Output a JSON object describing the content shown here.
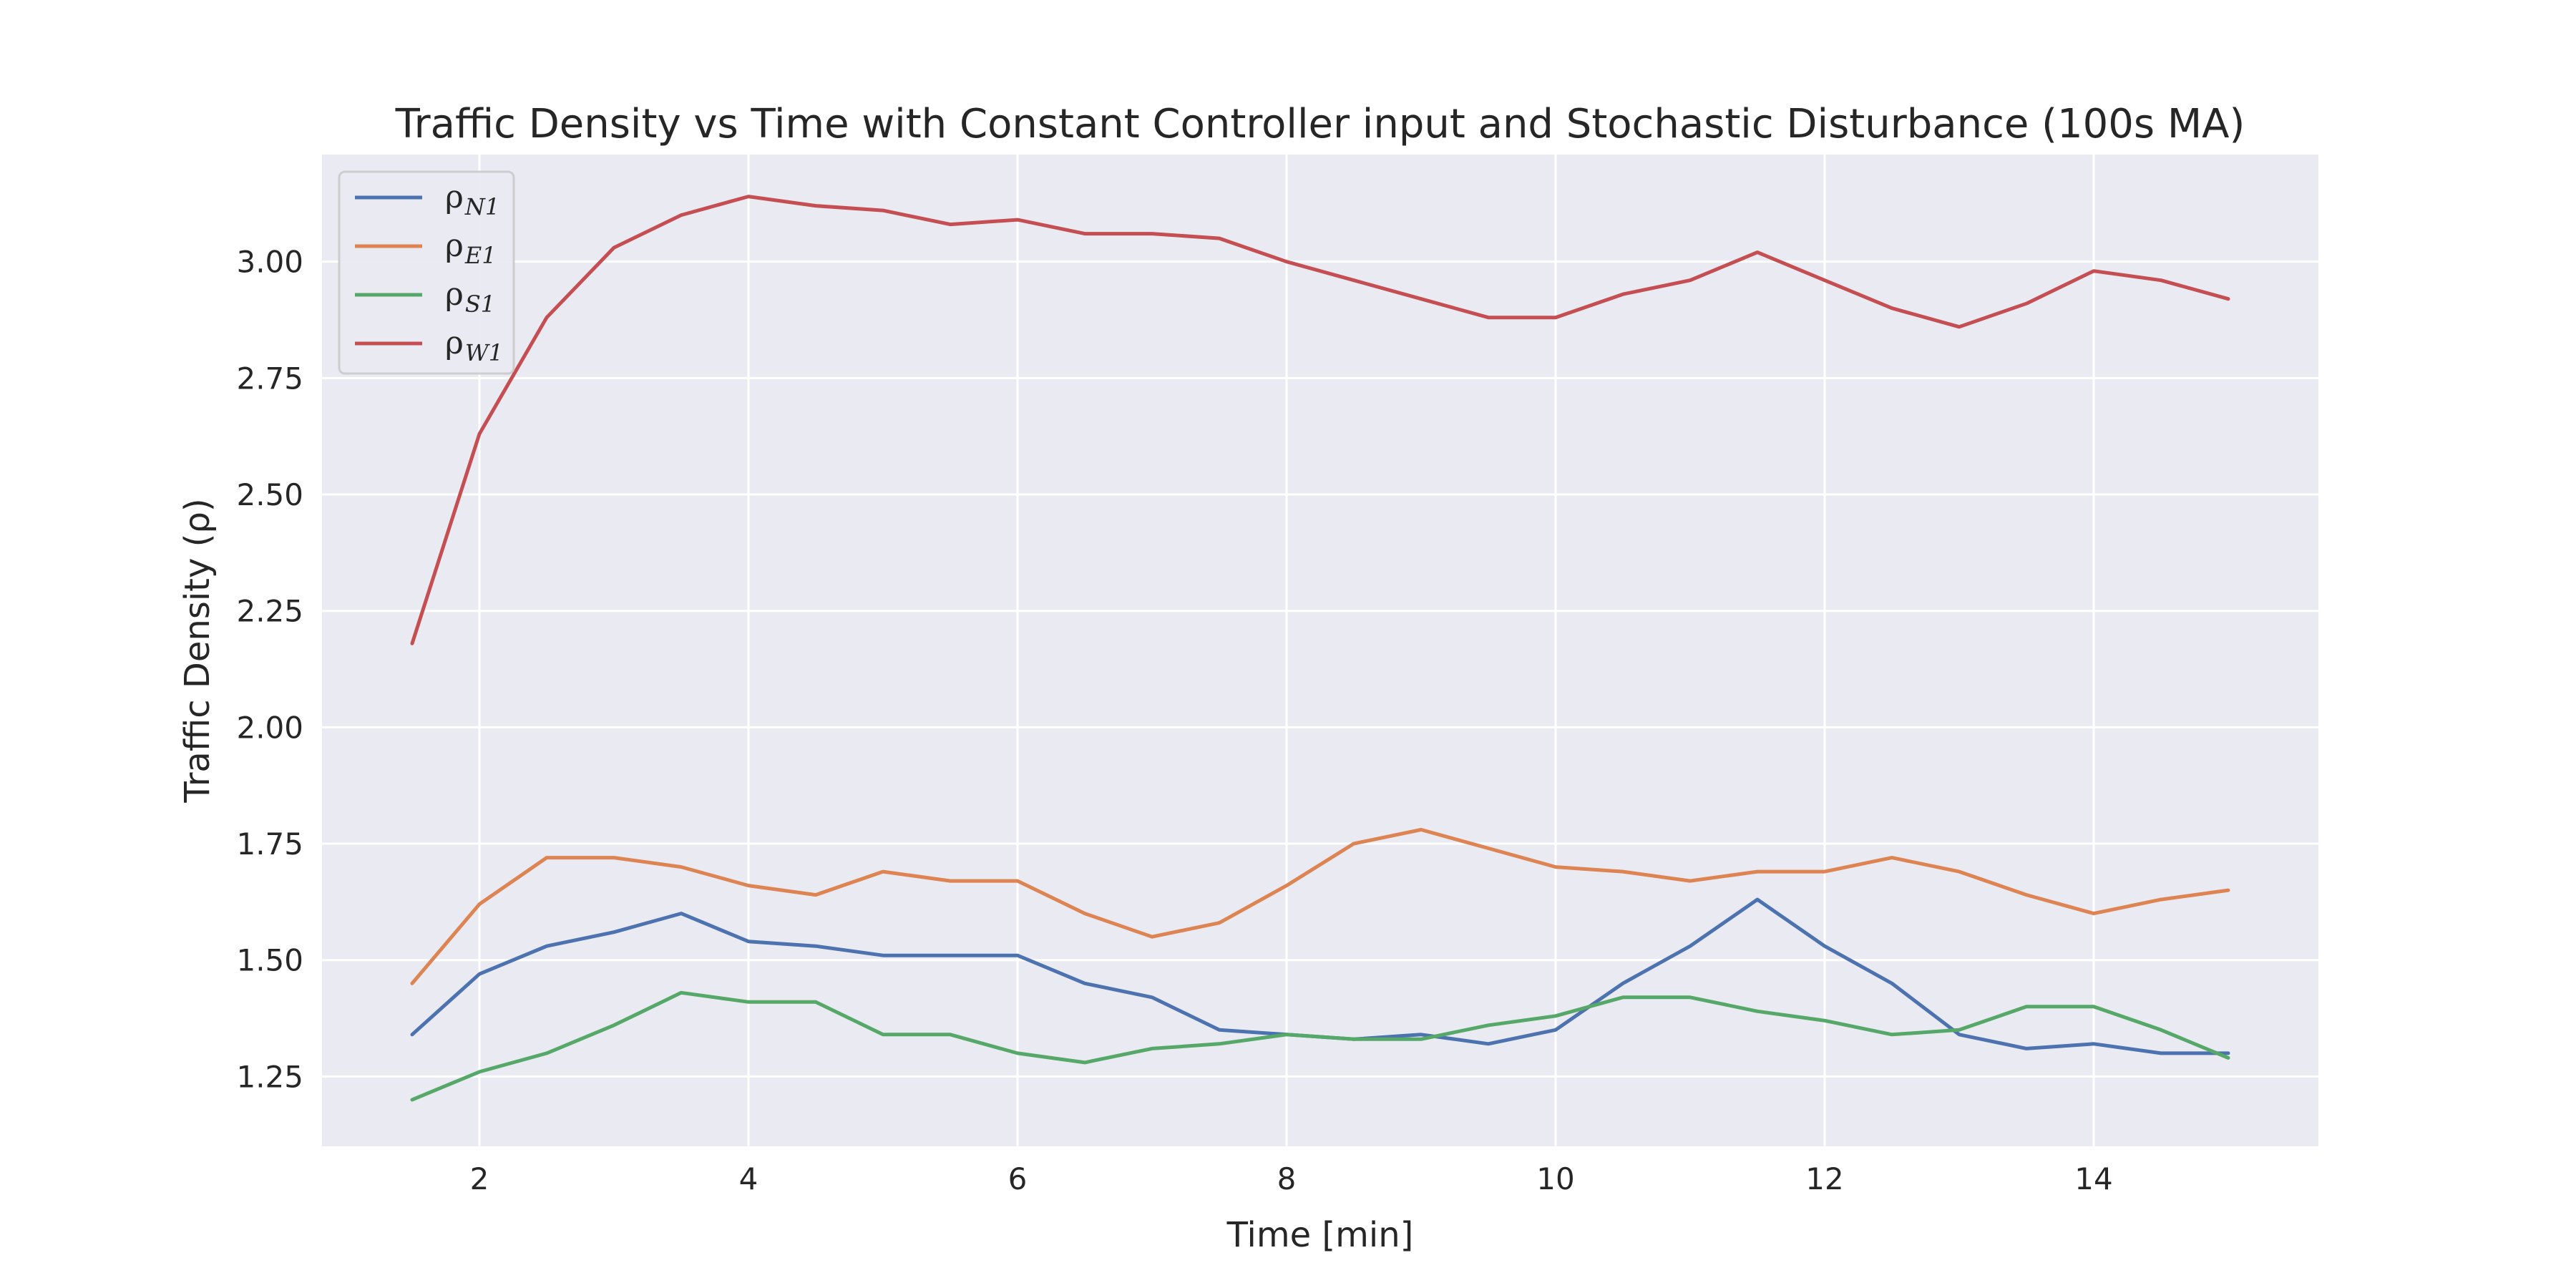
{
  "chart_data": {
    "type": "line",
    "title": "Traffic Density vs Time with Constant Controller input and Stochastic Disturbance (100s MA)",
    "xlabel": "Time [min]",
    "ylabel": "Traffic Density (ρ)",
    "xlim": [
      0.83,
      15.67
    ],
    "ylim": [
      1.1,
      3.23
    ],
    "xticks": [
      2,
      4,
      6,
      8,
      10,
      12,
      14
    ],
    "yticks": [
      1.25,
      1.5,
      1.75,
      2.0,
      2.25,
      2.5,
      2.75,
      3.0
    ],
    "xtick_labels": [
      "2",
      "4",
      "6",
      "8",
      "10",
      "12",
      "14"
    ],
    "ytick_labels": [
      "1.25",
      "1.50",
      "1.75",
      "2.00",
      "2.25",
      "2.50",
      "2.75",
      "3.00"
    ],
    "grid": true,
    "legend_position": "top-left",
    "background": "#eaeaf2",
    "x": [
      1.5,
      2.0,
      2.5,
      3.0,
      3.5,
      4.0,
      4.5,
      5.0,
      5.5,
      6.0,
      6.5,
      7.0,
      7.5,
      8.0,
      8.5,
      9.0,
      9.5,
      10.0,
      10.5,
      11.0,
      11.5,
      12.0,
      12.5,
      13.0,
      13.5,
      14.0,
      14.5,
      15.0
    ],
    "series": [
      {
        "name": "ρ",
        "subscript": "N1",
        "color": "#4c72b0",
        "values": [
          1.34,
          1.47,
          1.53,
          1.56,
          1.6,
          1.54,
          1.53,
          1.51,
          1.51,
          1.51,
          1.45,
          1.42,
          1.35,
          1.34,
          1.33,
          1.34,
          1.32,
          1.35,
          1.45,
          1.53,
          1.63,
          1.53,
          1.45,
          1.34,
          1.31,
          1.32,
          1.3,
          1.3
        ]
      },
      {
        "name": "ρ",
        "subscript": "E1",
        "color": "#dd8452",
        "values": [
          1.45,
          1.62,
          1.72,
          1.72,
          1.7,
          1.66,
          1.64,
          1.69,
          1.67,
          1.67,
          1.6,
          1.55,
          1.58,
          1.66,
          1.75,
          1.78,
          1.74,
          1.7,
          1.69,
          1.67,
          1.69,
          1.69,
          1.72,
          1.69,
          1.64,
          1.6,
          1.63,
          1.65
        ]
      },
      {
        "name": "ρ",
        "subscript": "S1",
        "color": "#55a868",
        "values": [
          1.2,
          1.26,
          1.3,
          1.36,
          1.43,
          1.41,
          1.41,
          1.34,
          1.34,
          1.3,
          1.28,
          1.31,
          1.32,
          1.34,
          1.33,
          1.33,
          1.36,
          1.38,
          1.42,
          1.42,
          1.39,
          1.37,
          1.34,
          1.35,
          1.4,
          1.4,
          1.35,
          1.29
        ]
      },
      {
        "name": "ρ",
        "subscript": "W1",
        "color": "#c44e52",
        "values": [
          2.18,
          2.63,
          2.88,
          3.03,
          3.1,
          3.14,
          3.12,
          3.11,
          3.08,
          3.09,
          3.06,
          3.06,
          3.05,
          3.0,
          2.96,
          2.92,
          2.88,
          2.88,
          2.93,
          2.96,
          3.02,
          2.96,
          2.9,
          2.86,
          2.91,
          2.98,
          2.96,
          2.92
        ]
      }
    ]
  }
}
